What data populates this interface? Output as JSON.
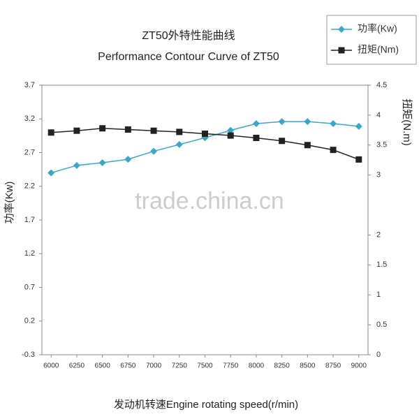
{
  "chart_data": {
    "type": "line",
    "title": "ZT50外特性能曲线",
    "subtitle": "Performance Contour Curve of ZT50",
    "x_label": "发动机转速Engine rotating speed(r/min)",
    "y_label": "功率(Kw)",
    "y2_label": "扭矩(N.m)",
    "annotation": "trade.china.cn",
    "x": [
      6000,
      6250,
      6500,
      6750,
      7000,
      7250,
      7500,
      7750,
      8000,
      8250,
      8500,
      8750,
      9000
    ],
    "xlim": [
      5910,
      9090
    ],
    "xticks": [
      6000,
      6250,
      6500,
      6750,
      7000,
      7250,
      7500,
      7750,
      8000,
      8250,
      8500,
      8750,
      9000
    ],
    "ylim": [
      -0.3,
      3.7
    ],
    "yticks": [
      -0.3,
      0.2,
      0.7,
      1.2,
      1.7,
      2.2,
      2.7,
      3.2,
      3.7
    ],
    "y2lim": [
      0,
      4.5
    ],
    "y2ticks": [
      0,
      0.5,
      1,
      1.5,
      2,
      3,
      3.5,
      4,
      4.5
    ],
    "legend": "top-right",
    "series": [
      {
        "name": "功率(Kw)",
        "color": "#3aa6c9",
        "marker": "diamond",
        "values": [
          2.4,
          2.51,
          2.55,
          2.6,
          2.72,
          2.82,
          2.92,
          3.03,
          3.13,
          3.16,
          3.16,
          3.13,
          3.09
        ]
      },
      {
        "name": "扭矩(Nm)",
        "color": "#222222",
        "marker": "square",
        "axis": "y2",
        "values": [
          3.71,
          3.74,
          3.78,
          3.76,
          3.74,
          3.72,
          3.69,
          3.66,
          3.62,
          3.57,
          3.5,
          3.42,
          3.26
        ]
      }
    ]
  }
}
